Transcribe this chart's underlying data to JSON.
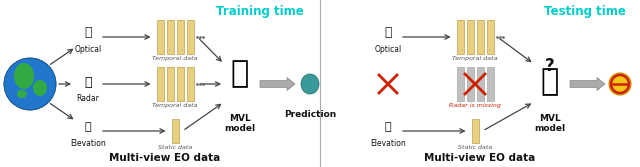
{
  "bg_color": "#ffffff",
  "title_training": "Training time",
  "title_testing": "Testing time",
  "label_multiview_left": "Multi-view EO data",
  "label_multiview_right": "Multi-view EO data",
  "label_optical": "Optical",
  "label_radar": "Radar",
  "label_elevation": "Elevation",
  "label_temporal": "Temporal data",
  "label_static": "Static data",
  "label_prediction": "Prediction",
  "label_mvl_model": "MVL\nmodel",
  "label_radar_missing": "Radar is missing",
  "title_color": "#00cccc",
  "radar_missing_color": "#cc2200",
  "text_color": "#111111",
  "bar_color": "#e8d080",
  "bar_color_grey": "#c0c0c0",
  "bar_edge_color": "#b09030",
  "teal_dot_color": "#3a9a9a",
  "arrow_gray": "#888888",
  "icon_color": "#333333",
  "figsize": [
    6.4,
    1.67
  ],
  "dpi": 100
}
